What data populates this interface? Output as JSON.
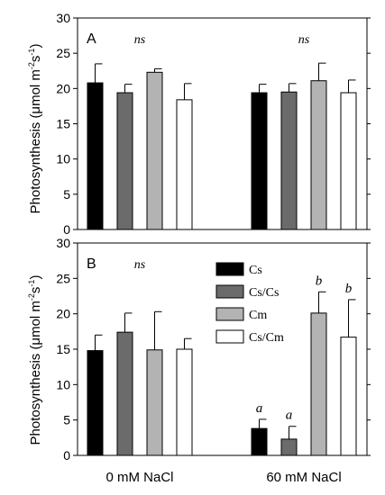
{
  "chart_data": {
    "type": "bar",
    "ylabel_main": "Photosynthesis (",
    "ylabel_unit": "μmol m",
    "ylabel_exp1": "-2",
    "ylabel_s": "s",
    "ylabel_exp2": "-1",
    "ylabel_close": ")",
    "ylim": [
      0,
      30
    ],
    "yticks": [
      "0",
      "5",
      "10",
      "15",
      "20",
      "25",
      "30"
    ],
    "categories": [
      "0 mM NaCl",
      "60 mM NaCl"
    ],
    "legend": [
      {
        "name": "Cs",
        "color": "#000000"
      },
      {
        "name": "Cs/Cs",
        "color": "#6b6b6b"
      },
      {
        "name": "Cm",
        "color": "#b3b3b3"
      },
      {
        "name": "Cs/Cm",
        "color": "#ffffff"
      }
    ],
    "panels": [
      {
        "label": "A",
        "series": [
          {
            "name": "Cs",
            "values": [
              20.8,
              19.4
            ],
            "errors": [
              2.7,
              1.2
            ]
          },
          {
            "name": "Cs/Cs",
            "values": [
              19.4,
              19.5
            ],
            "errors": [
              1.2,
              1.2
            ]
          },
          {
            "name": "Cm",
            "values": [
              22.3,
              21.1
            ],
            "errors": [
              0.5,
              2.5
            ]
          },
          {
            "name": "Cs/Cm",
            "values": [
              18.4,
              19.4
            ],
            "errors": [
              2.3,
              1.8
            ]
          }
        ],
        "group_annotations": [
          "ns",
          "ns"
        ],
        "bar_annotations": [
          [
            "",
            "",
            "",
            ""
          ],
          [
            "",
            "",
            "",
            ""
          ]
        ]
      },
      {
        "label": "B",
        "series": [
          {
            "name": "Cs",
            "values": [
              14.8,
              3.8
            ],
            "errors": [
              2.2,
              1.3
            ]
          },
          {
            "name": "Cs/Cs",
            "values": [
              17.4,
              2.3
            ],
            "errors": [
              2.7,
              1.8
            ]
          },
          {
            "name": "Cm",
            "values": [
              14.9,
              20.1
            ],
            "errors": [
              5.4,
              3.0
            ]
          },
          {
            "name": "Cs/Cm",
            "values": [
              15.0,
              16.7
            ],
            "errors": [
              1.5,
              5.3
            ]
          }
        ],
        "group_annotations": [
          "ns",
          ""
        ],
        "bar_annotations": [
          [
            "",
            "",
            "",
            ""
          ],
          [
            "a",
            "a",
            "b",
            "b"
          ]
        ]
      }
    ]
  }
}
